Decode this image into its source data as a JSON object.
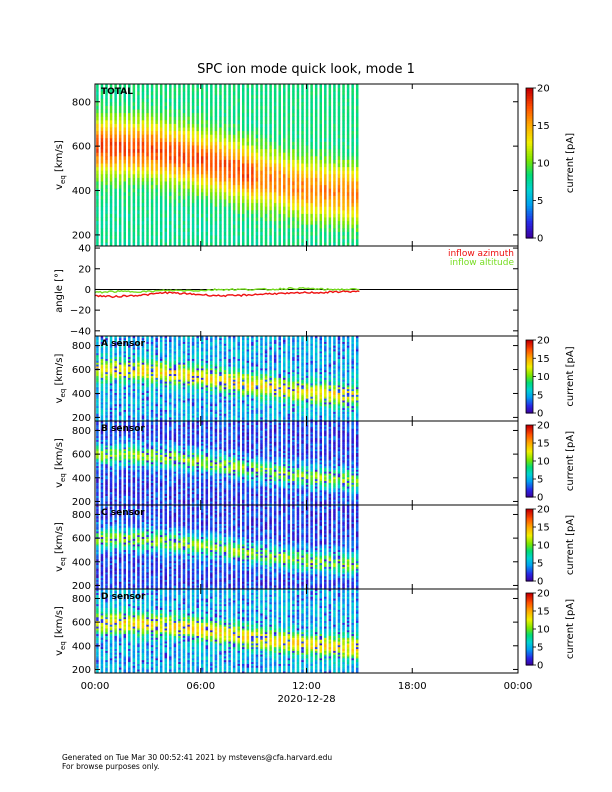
{
  "title": "SPC ion mode quick look, mode 1",
  "footer": {
    "line1": "Generated on Tue Mar 30 00:52:41 2021 by mstevens@cfa.harvard.edu",
    "line2": "For browse purposes only."
  },
  "chart_data": [
    {
      "type": "heatmap",
      "panel": "TOTAL",
      "label": "TOTAL",
      "ylabel": "v_eq [km/s]",
      "ylim": [
        150,
        880
      ],
      "yticks": [
        "200",
        "400",
        "600",
        "800"
      ],
      "colorbar": {
        "label": "current [pA]",
        "range": [
          0,
          20
        ],
        "ticks": [
          "0",
          "5",
          "10",
          "15",
          "20"
        ]
      },
      "data_coverage_hours": [
        0,
        15
      ],
      "peak_velocity_trend": [
        {
          "t": 0,
          "v": 600
        },
        {
          "t": 3,
          "v": 590
        },
        {
          "t": 6,
          "v": 540
        },
        {
          "t": 9,
          "v": 470
        },
        {
          "t": 12,
          "v": 410
        },
        {
          "t": 15,
          "v": 380
        }
      ]
    },
    {
      "type": "line",
      "panel": "angle",
      "ylabel": "angle [°]",
      "ylim": [
        -45,
        42
      ],
      "yticks": [
        "40",
        "20",
        "0",
        "−20",
        "−40"
      ],
      "series": [
        {
          "name": "inflow azimuth",
          "color": "#ee1111",
          "points": [
            [
              0,
              -6
            ],
            [
              1,
              -7
            ],
            [
              2,
              -6
            ],
            [
              3,
              -5
            ],
            [
              4,
              -3
            ],
            [
              5,
              -4
            ],
            [
              6,
              -5
            ],
            [
              7,
              -6
            ],
            [
              8,
              -6
            ],
            [
              9,
              -5
            ],
            [
              10,
              -4
            ],
            [
              11,
              -4
            ],
            [
              12,
              -3
            ],
            [
              13,
              -3
            ],
            [
              14,
              -2
            ],
            [
              15,
              -2
            ]
          ]
        },
        {
          "name": "inflow altitude",
          "color": "#77dd22",
          "points": [
            [
              0,
              -3
            ],
            [
              1,
              -2
            ],
            [
              2,
              -2
            ],
            [
              3,
              -2
            ],
            [
              4,
              -1
            ],
            [
              5,
              -1
            ],
            [
              6,
              -1
            ],
            [
              7,
              0
            ],
            [
              8,
              0
            ],
            [
              9,
              0
            ],
            [
              10,
              0
            ],
            [
              11,
              1
            ],
            [
              12,
              1
            ],
            [
              13,
              0
            ],
            [
              14,
              0
            ],
            [
              15,
              0
            ]
          ]
        }
      ]
    },
    {
      "type": "heatmap",
      "panel": "A",
      "label": "A sensor",
      "ylabel": "v_eq [km/s]",
      "ylim": [
        170,
        880
      ],
      "yticks": [
        "200",
        "400",
        "600",
        "800"
      ],
      "colorbar": {
        "label": "current [pA]",
        "range": [
          0,
          20
        ],
        "ticks": [
          "0",
          "5",
          "10",
          "15",
          "20"
        ]
      }
    },
    {
      "type": "heatmap",
      "panel": "B",
      "label": "B sensor",
      "ylabel": "v_eq [km/s]",
      "ylim": [
        170,
        880
      ],
      "yticks": [
        "200",
        "400",
        "600",
        "800"
      ],
      "colorbar": {
        "label": "current [pA]",
        "range": [
          0,
          20
        ],
        "ticks": [
          "0",
          "5",
          "10",
          "15",
          "20"
        ]
      }
    },
    {
      "type": "heatmap",
      "panel": "C",
      "label": "C sensor",
      "ylabel": "v_eq [km/s]",
      "ylim": [
        170,
        880
      ],
      "yticks": [
        "200",
        "400",
        "600",
        "800"
      ],
      "colorbar": {
        "label": "current [pA]",
        "range": [
          0,
          20
        ],
        "ticks": [
          "0",
          "5",
          "10",
          "15",
          "20"
        ]
      }
    },
    {
      "type": "heatmap",
      "panel": "D",
      "label": "D sensor",
      "ylabel": "v_eq [km/s]",
      "ylim": [
        170,
        880
      ],
      "yticks": [
        "200",
        "400",
        "600",
        "800"
      ],
      "colorbar": {
        "label": "current [pA]",
        "range": [
          0,
          20
        ],
        "ticks": [
          "0",
          "5",
          "10",
          "15",
          "20"
        ]
      }
    }
  ],
  "x_axis": {
    "range_hours": [
      0,
      24
    ],
    "ticks": [
      "00:00",
      "06:00",
      "12:00",
      "18:00",
      "00:00"
    ],
    "date_label": "2020-12-28"
  }
}
